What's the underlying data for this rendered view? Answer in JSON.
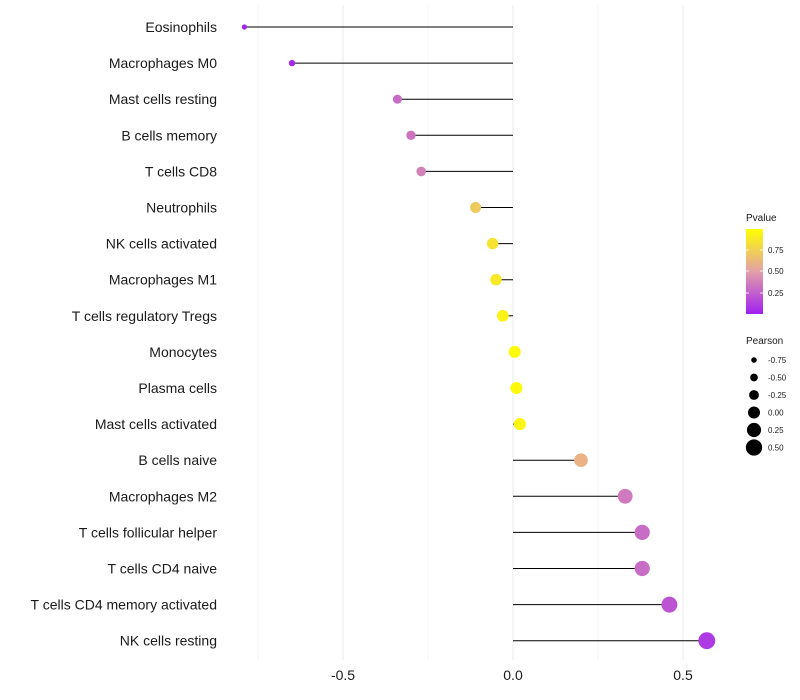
{
  "chart_data": {
    "type": "lollipop",
    "title": "",
    "xlabel": "",
    "ylabel": "",
    "xlim": [
      -0.8,
      0.6
    ],
    "x_ticks": [
      -0.5,
      0.0,
      0.5
    ],
    "x_tick_labels": [
      "-0.5",
      "0.0",
      "0.5"
    ],
    "categories": [
      "Eosinophils",
      "Macrophages M0",
      "Mast cells resting",
      "B cells memory",
      "T cells CD8",
      "Neutrophils",
      "NK cells activated",
      "Macrophages M1",
      "T cells regulatory  Tregs",
      "Monocytes",
      "Plasma cells",
      "Mast cells activated",
      "B cells naive",
      "Macrophages M2",
      "T cells follicular helper",
      "T cells CD4 naive",
      "T cells CD4 memory activated",
      "NK cells resting"
    ],
    "pearson": [
      -0.79,
      -0.65,
      -0.34,
      -0.3,
      -0.27,
      -0.11,
      -0.06,
      -0.05,
      -0.03,
      0.005,
      0.01,
      0.02,
      0.2,
      0.33,
      0.38,
      0.38,
      0.46,
      0.57
    ],
    "pvalue": [
      0.02,
      0.04,
      0.3,
      0.33,
      0.38,
      0.72,
      0.85,
      0.88,
      0.93,
      0.98,
      0.97,
      0.95,
      0.6,
      0.35,
      0.3,
      0.3,
      0.2,
      0.1
    ],
    "color_legend": {
      "title": "Pvalue",
      "ticks": [
        "0.75",
        "0.50",
        "0.25"
      ],
      "low_color": "#a020f0",
      "mid_color": "#e3a0a8",
      "high_color": "#ffff00"
    },
    "size_legend": {
      "title": "Pearson",
      "entries": [
        "-0.75",
        "-0.50",
        "-0.25",
        "0.00",
        "0.25",
        "0.50"
      ]
    }
  }
}
